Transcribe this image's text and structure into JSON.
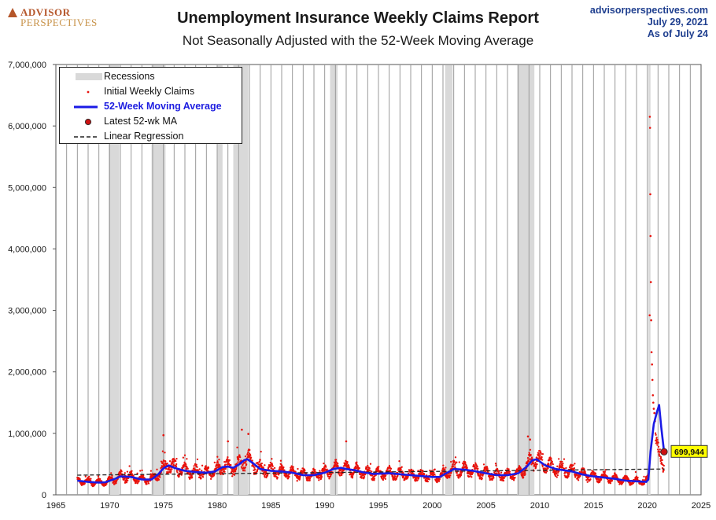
{
  "header": {
    "logo_top": "ADVISOR",
    "logo_bottom": "PERSPECTIVES",
    "title": "Unemployment Insurance Weekly Claims Report",
    "subtitle": "Not Seasonally Adjusted with the 52-Week Moving Average",
    "source_site": "advisorperspectives.com",
    "source_date": "July 29, 2021",
    "source_asof": "As of July 24"
  },
  "legend": {
    "recessions": "Recessions",
    "weekly_claims": "Initial Weekly Claims",
    "moving_average": "52-Week Moving Average",
    "latest_ma": "Latest 52-wk MA",
    "regression": "Linear Regression"
  },
  "colors": {
    "claims": "#e8120c",
    "moving_average": "#1a1ae6",
    "recession": "#d9d9d9",
    "callout": "#ffff00",
    "regression": "#222222"
  },
  "chart_data": {
    "type": "scatter",
    "title": "Unemployment Insurance Weekly Claims Report",
    "subtitle": "Not Seasonally Adjusted with the 52-Week Moving Average",
    "xlim": [
      1965,
      2025
    ],
    "ylim": [
      0,
      7000000
    ],
    "x_ticks": [
      "1965",
      "1970",
      "1975",
      "1980",
      "1985",
      "1990",
      "1995",
      "2000",
      "2005",
      "2010",
      "2015",
      "2020",
      "2025"
    ],
    "y_ticks": [
      "0",
      "1,000,000",
      "2,000,000",
      "3,000,000",
      "4,000,000",
      "5,000,000",
      "6,000,000",
      "7,000,000"
    ],
    "grid": "vertical",
    "legend_position": "top-left",
    "recessions": [
      [
        1969.9,
        1970.9
      ],
      [
        1973.9,
        1975.2
      ],
      [
        1980.0,
        1980.5
      ],
      [
        1981.5,
        1982.9
      ],
      [
        1990.5,
        1991.2
      ],
      [
        2001.2,
        2001.9
      ],
      [
        2007.9,
        2009.5
      ],
      [
        2020.1,
        2020.3
      ]
    ],
    "moving_average": {
      "name": "52-Week Moving Average",
      "x": [
        1967.0,
        1968.0,
        1969.0,
        1969.6,
        1970.5,
        1971.0,
        1972.0,
        1973.0,
        1973.9,
        1974.5,
        1975.0,
        1975.5,
        1976.0,
        1977.0,
        1978.0,
        1979.0,
        1979.8,
        1980.5,
        1981.0,
        1981.5,
        1982.0,
        1982.5,
        1982.8,
        1983.3,
        1984.0,
        1985.0,
        1986.0,
        1987.0,
        1988.0,
        1989.0,
        1990.0,
        1990.8,
        1991.5,
        1992.0,
        1992.8,
        1993.5,
        1994.5,
        1996.0,
        1998.0,
        2000.0,
        2000.7,
        2001.5,
        2002.0,
        2003.0,
        2003.8,
        2005.0,
        2006.0,
        2007.0,
        2008.0,
        2008.8,
        2009.3,
        2009.7,
        2010.5,
        2011.5,
        2013.0,
        2014.0,
        2015.0,
        2016.0,
        2017.0,
        2018.0,
        2019.0,
        2019.9,
        2020.1,
        2020.3,
        2020.6,
        2020.9,
        2021.1,
        2021.3,
        2021.56
      ],
      "y": [
        230000,
        210000,
        200000,
        205000,
        260000,
        300000,
        290000,
        250000,
        250000,
        330000,
        430000,
        480000,
        440000,
        390000,
        370000,
        360000,
        380000,
        450000,
        460000,
        440000,
        490000,
        560000,
        580000,
        520000,
        420000,
        390000,
        380000,
        360000,
        320000,
        320000,
        360000,
        420000,
        440000,
        420000,
        400000,
        370000,
        340000,
        350000,
        320000,
        290000,
        290000,
        370000,
        420000,
        410000,
        390000,
        350000,
        320000,
        320000,
        350000,
        460000,
        560000,
        580000,
        480000,
        420000,
        380000,
        330000,
        300000,
        280000,
        260000,
        230000,
        220000,
        210000,
        250000,
        700000,
        1150000,
        1350000,
        1460000,
        1100000,
        699944
      ]
    },
    "weekly_claims_spikes": {
      "name": "Initial Weekly Claims",
      "x": [
        1975.0,
        1981.0,
        1982.3,
        1982.9,
        1992.0,
        2008.9,
        2009.1,
        2020.22,
        2020.24,
        2020.26,
        2020.28,
        2020.3,
        2020.33,
        2020.36,
        2020.4,
        2020.44,
        2020.48,
        2020.52,
        2020.56,
        2020.6,
        2020.66,
        2020.72
      ],
      "y": [
        970000,
        870000,
        1060000,
        990000,
        870000,
        950000,
        900000,
        2920000,
        6150000,
        5970000,
        4890000,
        4210000,
        3460000,
        2840000,
        2320000,
        2120000,
        1870000,
        1620000,
        1500000,
        1400000,
        1330000,
        1200000
      ]
    },
    "linear_regression": {
      "name": "Linear Regression",
      "x": [
        1967,
        2021.6
      ],
      "y": [
        320000,
        420000
      ]
    },
    "latest_ma": {
      "x": 2021.56,
      "value": 699944,
      "label": "699,944"
    }
  }
}
